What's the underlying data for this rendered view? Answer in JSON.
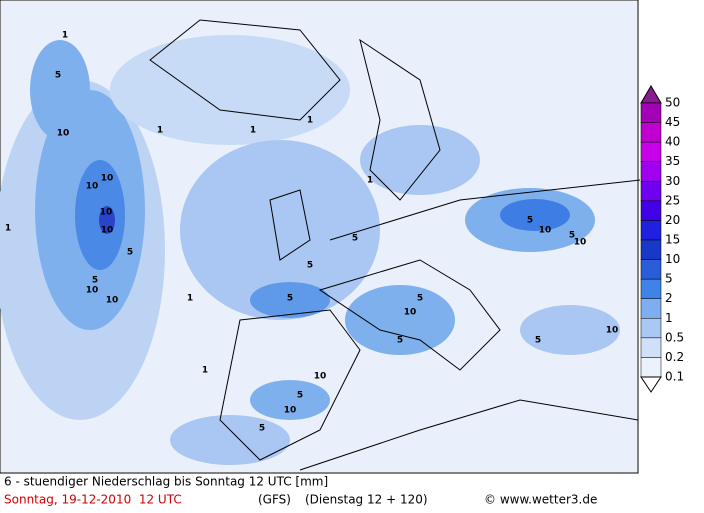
{
  "map": {
    "contour_labels": [
      "1",
      "1",
      "5",
      "10",
      "10",
      "10",
      "10",
      "10",
      "5",
      "10",
      "10",
      "5",
      "1",
      "1",
      "1",
      "5",
      "5",
      "5",
      "5",
      "10",
      "5",
      "10",
      "5",
      "10",
      "5",
      "10",
      "10",
      "5",
      "5",
      "5",
      "10",
      "1",
      "1",
      "1"
    ]
  },
  "legend": {
    "labels": [
      50,
      45,
      40,
      35,
      30,
      25,
      20,
      15,
      10,
      5,
      2,
      1,
      0.5,
      0.2,
      0.1
    ]
  },
  "footer": {
    "line1": "6 - stuendiger Niederschlag bis Sonntag 12 UTC [mm]",
    "date": "Sonntag, 19-12-2010  12 UTC",
    "model": "(GFS)",
    "forecast": "(Dienstag 12 + 120)",
    "source": "© www.wetter3.de"
  }
}
